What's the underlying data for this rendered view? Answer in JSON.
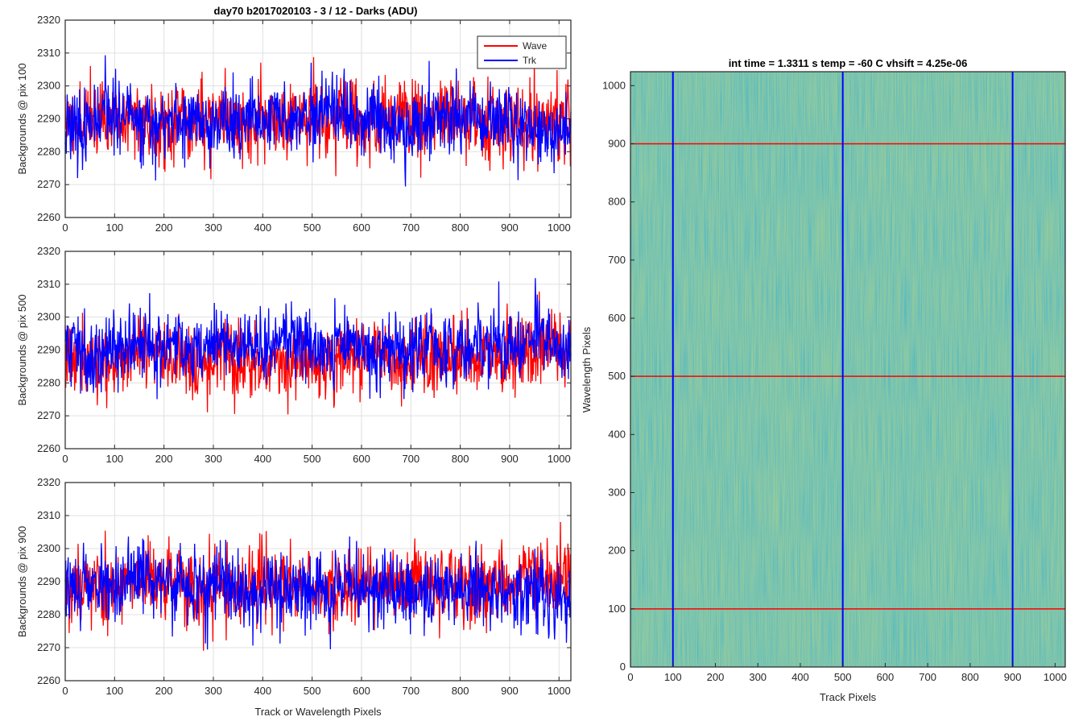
{
  "chart_data": [
    {
      "type": "line",
      "panel": "top",
      "title": "day70 b2017020103 - 3 / 12 - Darks (ADU)",
      "xlabel": "",
      "ylabel": "Backgrounds @ pix 100",
      "xlim": [
        0,
        1024
      ],
      "ylim": [
        2260,
        2320
      ],
      "xticks": [
        0,
        100,
        200,
        300,
        400,
        500,
        600,
        700,
        800,
        900,
        1000
      ],
      "yticks": [
        2260,
        2270,
        2280,
        2290,
        2300,
        2310,
        2320
      ],
      "grid": true,
      "legend_position": "top-right",
      "series": [
        {
          "name": "Wave",
          "color": "#ff0000",
          "mean": 2289.5,
          "std": 6.0,
          "seed": 11
        },
        {
          "name": "Trk",
          "color": "#0000ff",
          "mean": 2288.5,
          "std": 5.5,
          "seed": 23
        }
      ]
    },
    {
      "type": "line",
      "panel": "middle",
      "title": "",
      "xlabel": "",
      "ylabel": "Backgrounds @ pix 500",
      "xlim": [
        0,
        1024
      ],
      "ylim": [
        2260,
        2320
      ],
      "xticks": [
        0,
        100,
        200,
        300,
        400,
        500,
        600,
        700,
        800,
        900,
        1000
      ],
      "yticks": [
        2260,
        2270,
        2280,
        2290,
        2300,
        2310,
        2320
      ],
      "grid": true,
      "series": [
        {
          "name": "Wave",
          "color": "#ff0000",
          "mean": 2287.5,
          "std": 5.5,
          "seed": 37
        },
        {
          "name": "Trk",
          "color": "#0000ff",
          "mean": 2291.0,
          "std": 5.5,
          "seed": 41
        }
      ]
    },
    {
      "type": "line",
      "panel": "bottom",
      "title": "",
      "xlabel": "Track or Wavelength Pixels",
      "ylabel": "Backgrounds @ pix 900",
      "xlim": [
        0,
        1024
      ],
      "ylim": [
        2260,
        2320
      ],
      "xticks": [
        0,
        100,
        200,
        300,
        400,
        500,
        600,
        700,
        800,
        900,
        1000
      ],
      "yticks": [
        2260,
        2270,
        2280,
        2290,
        2300,
        2310,
        2320
      ],
      "grid": true,
      "series": [
        {
          "name": "Wave",
          "color": "#ff0000",
          "mean": 2289.5,
          "std": 6.0,
          "seed": 53
        },
        {
          "name": "Trk",
          "color": "#0000ff",
          "mean": 2287.5,
          "std": 5.5,
          "seed": 67
        }
      ]
    },
    {
      "type": "heatmap",
      "panel": "image",
      "title": "int time = 1.3311 s    temp = -60 C    vhsift = 4.25e-06",
      "xlabel": "Track Pixels",
      "ylabel": "Wavelength Pixels",
      "xlim": [
        0,
        1024
      ],
      "ylim": [
        0,
        1024
      ],
      "xticks": [
        0,
        100,
        200,
        300,
        400,
        500,
        600,
        700,
        800,
        900,
        1000
      ],
      "yticks": [
        0,
        100,
        200,
        300,
        400,
        500,
        600,
        700,
        800,
        900,
        1000
      ],
      "colormap": "parula",
      "vertical_markers": {
        "color": "#0000ff",
        "x": [
          100,
          500,
          900
        ]
      },
      "horizontal_markers": {
        "color": "#ff0000",
        "y": [
          100,
          500,
          900
        ]
      }
    }
  ]
}
